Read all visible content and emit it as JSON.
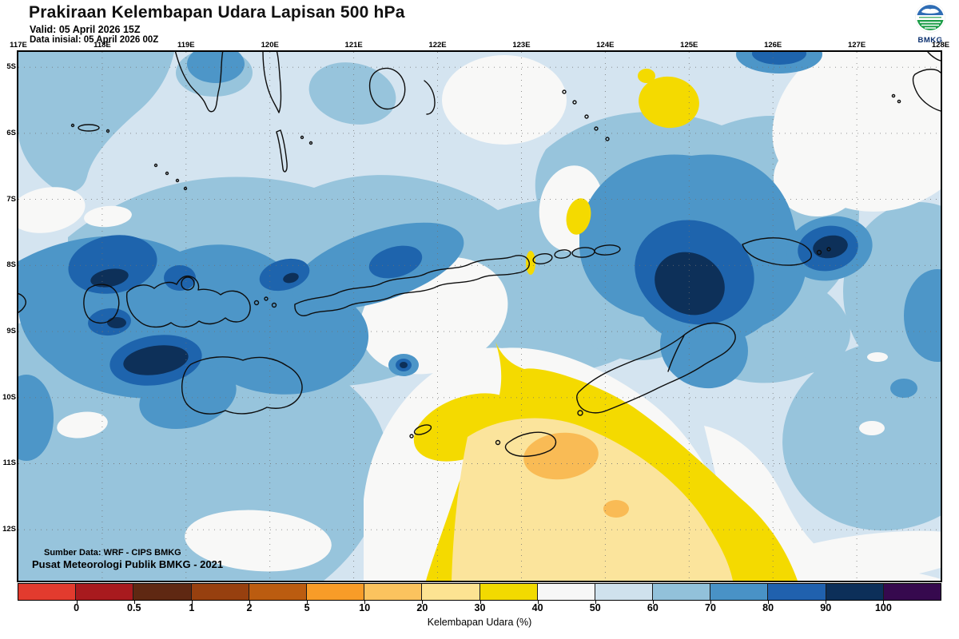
{
  "header": {
    "title": "Prakiraan Kelembapan Udara Lapisan 500 hPa",
    "valid_label": "Valid: 05 April 2026 15Z",
    "init_label": "Data inisial: 05 April 2026 00Z",
    "logo_text": "BMKG"
  },
  "map": {
    "lon_labels": [
      "117E",
      "118E",
      "119E",
      "120E",
      "121E",
      "122E",
      "123E",
      "124E",
      "125E",
      "126E",
      "127E",
      "128E"
    ],
    "lat_labels": [
      "5S",
      "6S",
      "7S",
      "8S",
      "9S",
      "10S",
      "11S",
      "12S"
    ],
    "source_line1": "Sumber Data: WRF - CIPS BMKG",
    "source_line2": "Pusat Meteorologi Publik BMKG - 2021"
  },
  "colorbar": {
    "caption": "Kelembapan Udara (%)",
    "tick_labels": [
      "0",
      "0.5",
      "1",
      "2",
      "5",
      "10",
      "20",
      "30",
      "40",
      "50",
      "60",
      "70",
      "80",
      "90",
      "100"
    ],
    "segment_colors": [
      "#e23b2e",
      "#a81a1e",
      "#5f2812",
      "#97400f",
      "#bb5c10",
      "#f89c28",
      "#fbc35e",
      "#fce392",
      "#f2da00",
      "#f7f7f7",
      "#cfe1ed",
      "#92c1da",
      "#4992c6",
      "#2061ae",
      "#0c2f59",
      "#36094e"
    ],
    "unit": "%"
  }
}
